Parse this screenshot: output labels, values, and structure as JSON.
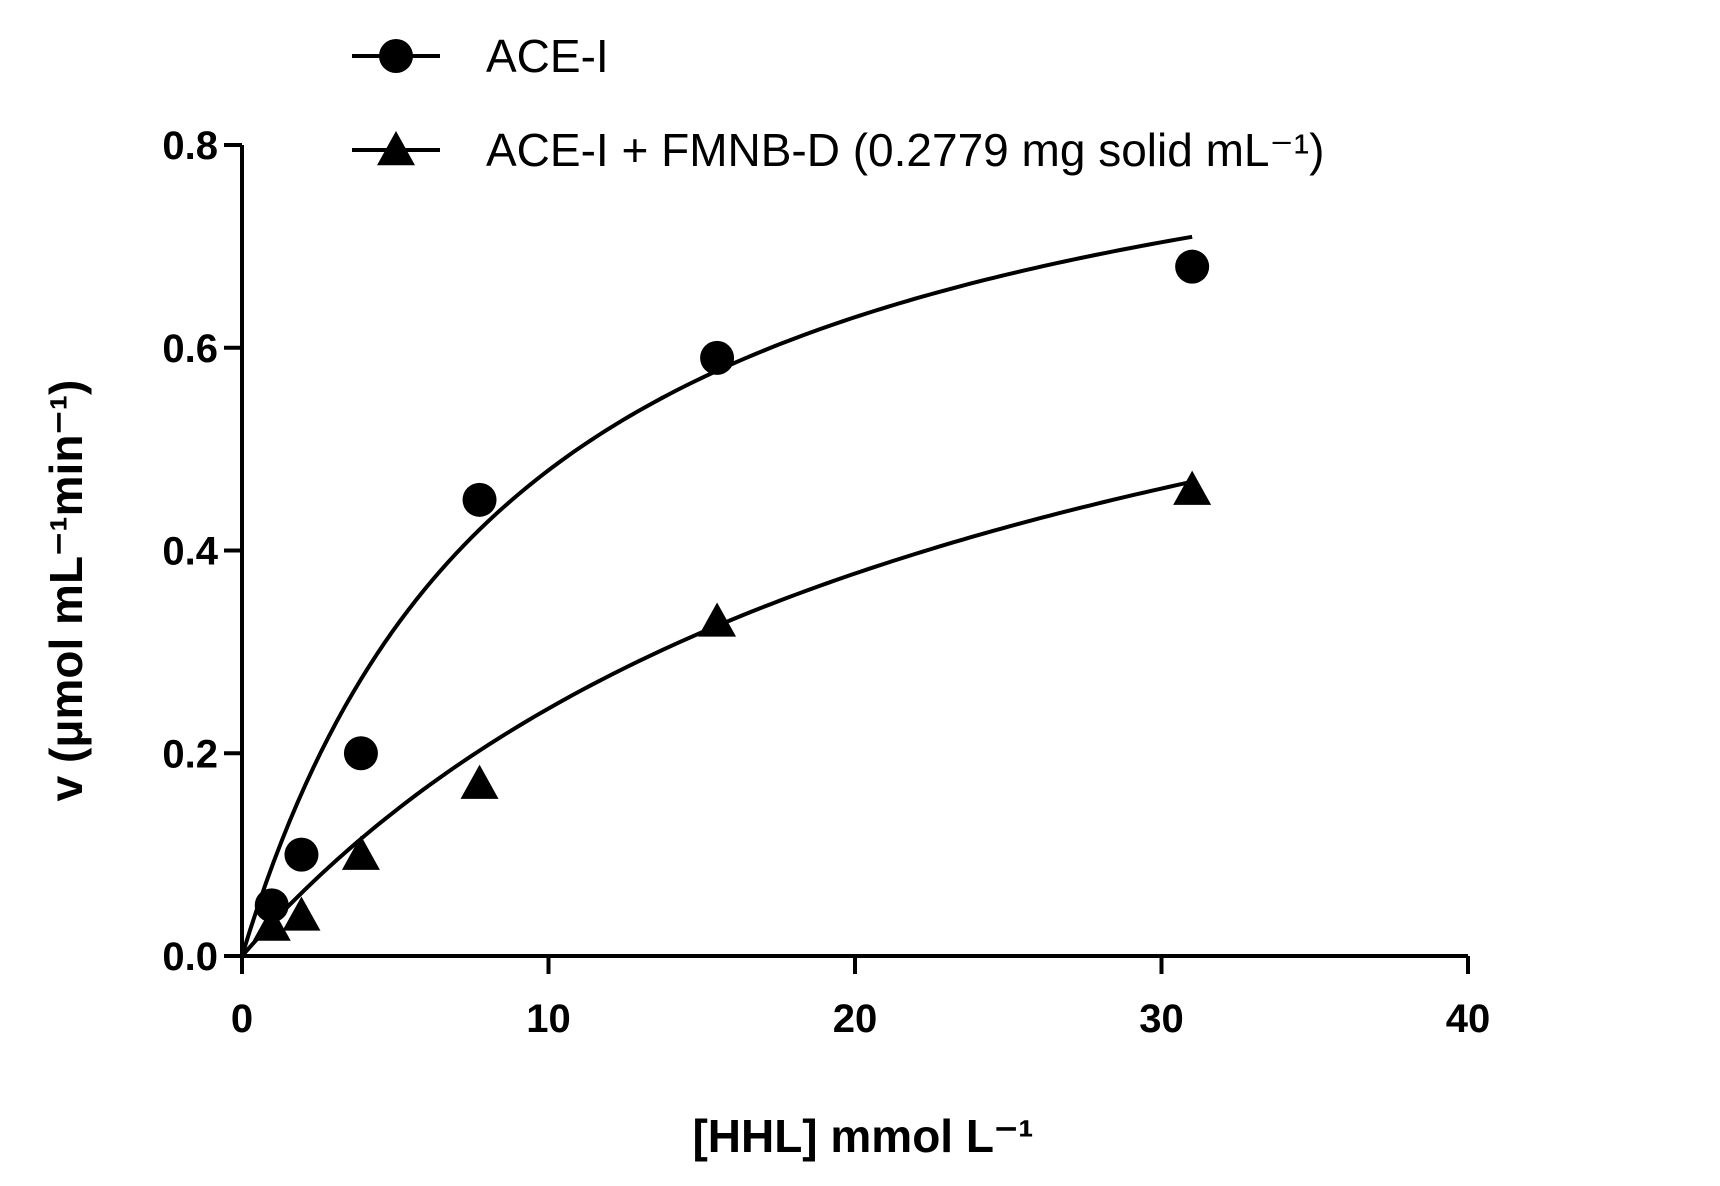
{
  "chart_data": {
    "type": "scatter",
    "xlabel": "[HHL] mmol L⁻¹",
    "ylabel": "v (μmol mL⁻¹min⁻¹)",
    "xlim": [
      0,
      40
    ],
    "ylim": [
      0,
      0.8
    ],
    "xticks": [
      "0",
      "10",
      "20",
      "30",
      "40"
    ],
    "yticks": [
      "0.0",
      "0.2",
      "0.4",
      "0.6",
      "0.8"
    ],
    "grid": false,
    "legend_position": "top-right",
    "series": [
      {
        "name": "ACE-I",
        "marker": "circle",
        "x": [
          0.97,
          1.94,
          3.88,
          7.75,
          15.5,
          31.0
        ],
        "y": [
          0.05,
          0.1,
          0.2,
          0.45,
          0.59,
          0.68
        ],
        "fit": {
          "model": "michaelis-menten",
          "vmax": 0.92,
          "km": 9.2,
          "x_range": [
            0,
            31.0
          ]
        }
      },
      {
        "name": "ACE-I + FMNB-D (0.2779 mg solid mL⁻¹)",
        "marker": "triangle",
        "x": [
          0.97,
          1.94,
          3.88,
          7.75,
          15.5,
          31.0
        ],
        "y": [
          0.03,
          0.04,
          0.1,
          0.17,
          0.33,
          0.46
        ],
        "fit": {
          "model": "michaelis-menten",
          "vmax": 0.83,
          "km": 24.0,
          "x_range": [
            0,
            31.0
          ]
        }
      }
    ]
  }
}
